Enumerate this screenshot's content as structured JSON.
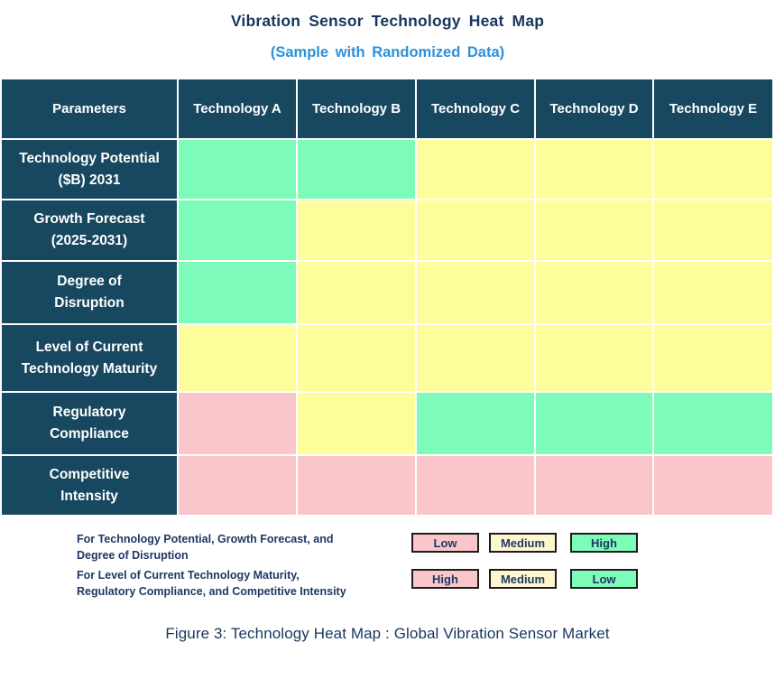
{
  "title": "Vibration Sensor Technology Heat Map",
  "subtitle": "(Sample with Randomized Data)",
  "caption": "Figure 3: Technology Heat Map :  Global Vibration Sensor Market",
  "colors": {
    "header_bg": "#174860",
    "header_text": "#FFFFFF",
    "green": "#7DFBB8",
    "yellow": "#FDFD9C",
    "pink": "#FBC6CA",
    "legend_yellow": "#FEF6CF",
    "title_text": "#17365D",
    "subtitle_text": "#2E90D8",
    "legend_text": "#1F3864"
  },
  "table": {
    "columns": [
      "Parameters",
      "Technology A",
      "Technology B",
      "Technology C",
      "Technology D",
      "Technology E"
    ],
    "rows": [
      {
        "label_lines": [
          "Technology Potential",
          "($B) 2031"
        ],
        "cells": [
          "green",
          "green",
          "yellow",
          "yellow",
          "yellow"
        ]
      },
      {
        "label_lines": [
          "Growth Forecast",
          "(2025-2031)"
        ],
        "cells": [
          "green",
          "yellow",
          "yellow",
          "yellow",
          "yellow"
        ]
      },
      {
        "label_lines": [
          "Degree of",
          "Disruption"
        ],
        "cells": [
          "green",
          "yellow",
          "yellow",
          "yellow",
          "yellow"
        ]
      },
      {
        "label_lines": [
          "Level of Current",
          "Technology Maturity"
        ],
        "cells": [
          "yellow",
          "yellow",
          "yellow",
          "yellow",
          "yellow"
        ]
      },
      {
        "label_lines": [
          "Regulatory",
          "Compliance"
        ],
        "cells": [
          "pink",
          "yellow",
          "green",
          "green",
          "green"
        ]
      },
      {
        "label_lines": [
          "Competitive",
          "Intensity"
        ],
        "cells": [
          "pink",
          "pink",
          "pink",
          "pink",
          "pink"
        ]
      }
    ]
  },
  "legend": {
    "rows": [
      {
        "text_lines": [
          "For Technology Potential, Growth Forecast, and",
          "Degree of Disruption"
        ],
        "boxes": [
          {
            "label": "Low",
            "color": "pink"
          },
          {
            "label": "Medium",
            "color": "legend_yellow"
          },
          {
            "label": "High",
            "color": "green"
          }
        ]
      },
      {
        "text_lines": [
          "For Level of Current Technology Maturity,",
          "Regulatory Compliance, and Competitive Intensity"
        ],
        "boxes": [
          {
            "label": "High",
            "color": "pink"
          },
          {
            "label": "Medium",
            "color": "legend_yellow"
          },
          {
            "label": "Low",
            "color": "green"
          }
        ]
      }
    ]
  },
  "chart_data": {
    "type": "heatmap",
    "title": "Vibration Sensor Technology Heat Map",
    "subtitle": "(Sample with Randomized Data)",
    "columns": [
      "Technology A",
      "Technology B",
      "Technology C",
      "Technology D",
      "Technology E"
    ],
    "rows": [
      "Technology Potential ($B) 2031",
      "Growth Forecast (2025-2031)",
      "Degree of Disruption",
      "Level of Current Technology Maturity",
      "Regulatory Compliance",
      "Competitive Intensity"
    ],
    "values": [
      [
        "High",
        "High",
        "Medium",
        "Medium",
        "Medium"
      ],
      [
        "High",
        "Medium",
        "Medium",
        "Medium",
        "Medium"
      ],
      [
        "High",
        "Medium",
        "Medium",
        "Medium",
        "Medium"
      ],
      [
        "Medium",
        "Medium",
        "Medium",
        "Medium",
        "Medium"
      ],
      [
        "High",
        "Medium",
        "Low",
        "Low",
        "Low"
      ],
      [
        "High",
        "High",
        "High",
        "High",
        "High"
      ]
    ],
    "cell_colors": [
      [
        "green",
        "green",
        "yellow",
        "yellow",
        "yellow"
      ],
      [
        "green",
        "yellow",
        "yellow",
        "yellow",
        "yellow"
      ],
      [
        "green",
        "yellow",
        "yellow",
        "yellow",
        "yellow"
      ],
      [
        "yellow",
        "yellow",
        "yellow",
        "yellow",
        "yellow"
      ],
      [
        "pink",
        "yellow",
        "green",
        "green",
        "green"
      ],
      [
        "pink",
        "pink",
        "pink",
        "pink",
        "pink"
      ]
    ],
    "color_scale_row1_to_3": {
      "Low": "pink",
      "Medium": "yellow",
      "High": "green"
    },
    "color_scale_row4_to_6": {
      "High": "pink",
      "Medium": "yellow",
      "Low": "green"
    },
    "legend_position": "bottom",
    "caption": "Figure 3: Technology Heat Map :  Global Vibration Sensor Market"
  }
}
